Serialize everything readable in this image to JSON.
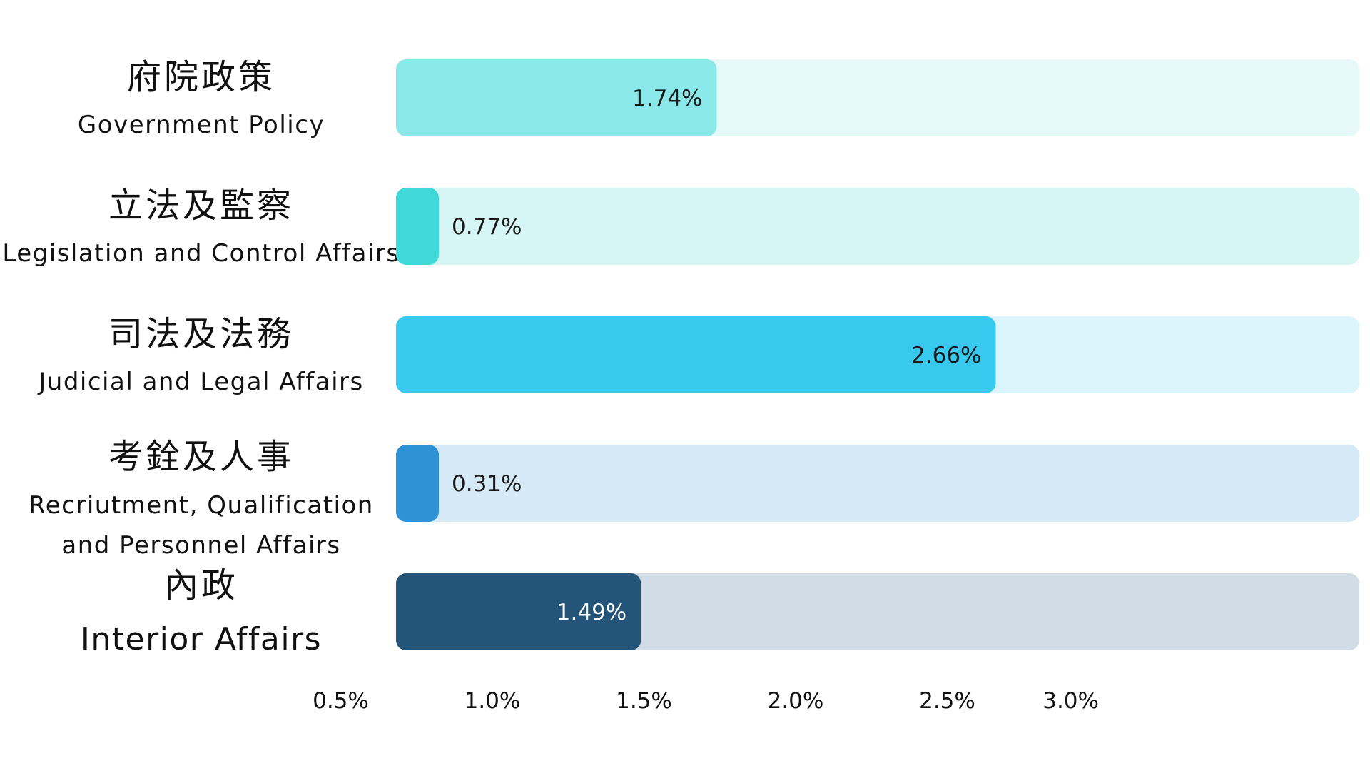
{
  "chart_data": {
    "type": "bar",
    "orientation": "horizontal",
    "title": "",
    "xlabel": "",
    "ylabel": "",
    "xlim": [
      0,
      3.0
    ],
    "grid": false,
    "legend": "none",
    "categories": [
      {
        "zh": "府院政策",
        "en": [
          "Government Policy"
        ]
      },
      {
        "zh": "立法及監察",
        "en": [
          "Legislation and Control Affairs"
        ]
      },
      {
        "zh": "司法及法務",
        "en": [
          "Judicial and Legal Affairs"
        ]
      },
      {
        "zh": "考銓及人事",
        "en": [
          "Recriutment, Qualification",
          "and Personnel Affairs"
        ]
      },
      {
        "zh": "內政",
        "en": [
          "Interior Affairs"
        ]
      }
    ],
    "values": [
      1.74,
      0.77,
      2.66,
      0.31,
      1.49
    ],
    "value_labels": [
      "1.74%",
      "0.77%",
      "2.66%",
      "0.31%",
      "1.49%"
    ],
    "x_ticks": [
      0.5,
      1.0,
      1.5,
      2.0,
      2.5,
      3.0
    ],
    "x_tick_labels": [
      "0.5%",
      "1.0%",
      "1.5%",
      "2.0%",
      "2.5%",
      "3.0%"
    ],
    "colors": {
      "bars": [
        "#8ae9e8",
        "#40d9d9",
        "#38c9ee",
        "#2e92d6",
        "#245579"
      ],
      "tracks": [
        "#e6f8f8",
        "#d6f5f5",
        "#dcf5fc",
        "#d5e9f7",
        "#d1dce6"
      ],
      "label_text": [
        "#1a1a1a",
        "#1a1a1a",
        "#1a1a1a",
        "#1a1a1a",
        "#ffffff"
      ]
    }
  }
}
